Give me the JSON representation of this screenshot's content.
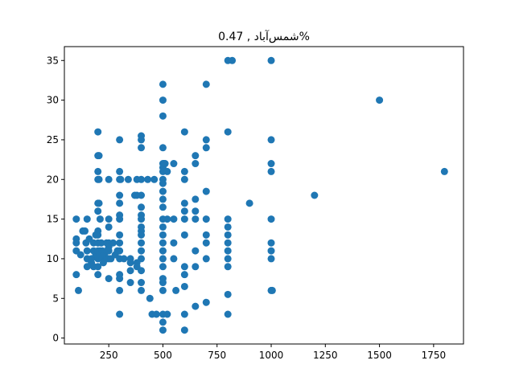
{
  "chart_data": {
    "type": "scatter",
    "title": "شمس‌آباد , 0.47%",
    "xlabel": "",
    "ylabel": "",
    "xlim": [
      45,
      1888
    ],
    "ylim": [
      -0.75,
      36.75
    ],
    "xticks": [
      250,
      500,
      750,
      1000,
      1250,
      1500,
      1750
    ],
    "yticks": [
      0,
      5,
      10,
      15,
      20,
      25,
      30,
      35
    ],
    "grid": false,
    "legend": "none",
    "marker_color": "#1f77b4",
    "points": [
      [
        100,
        15
      ],
      [
        100,
        12.5
      ],
      [
        100,
        12
      ],
      [
        100,
        11
      ],
      [
        100,
        8
      ],
      [
        110,
        6
      ],
      [
        120,
        10.5
      ],
      [
        130,
        13.5
      ],
      [
        140,
        13.5
      ],
      [
        145,
        12
      ],
      [
        150,
        15
      ],
      [
        150,
        11
      ],
      [
        150,
        10
      ],
      [
        150,
        9
      ],
      [
        160,
        12.5
      ],
      [
        170,
        10
      ],
      [
        170,
        9.5
      ],
      [
        180,
        12
      ],
      [
        180,
        11
      ],
      [
        180,
        9
      ],
      [
        190,
        13
      ],
      [
        190,
        10.5
      ],
      [
        200,
        26
      ],
      [
        200,
        23
      ],
      [
        200,
        21
      ],
      [
        200,
        20
      ],
      [
        200,
        17
      ],
      [
        200,
        16
      ],
      [
        200,
        13.5
      ],
      [
        200,
        13
      ],
      [
        200,
        12
      ],
      [
        200,
        11
      ],
      [
        200,
        10
      ],
      [
        200,
        9
      ],
      [
        200,
        8
      ],
      [
        205,
        23
      ],
      [
        205,
        20
      ],
      [
        205,
        17
      ],
      [
        210,
        15
      ],
      [
        210,
        11
      ],
      [
        210,
        10.5
      ],
      [
        215,
        12
      ],
      [
        220,
        11
      ],
      [
        220,
        10
      ],
      [
        225,
        9.5
      ],
      [
        230,
        10.5
      ],
      [
        240,
        12
      ],
      [
        240,
        11
      ],
      [
        240,
        10
      ],
      [
        250,
        20
      ],
      [
        250,
        15
      ],
      [
        250,
        14
      ],
      [
        250,
        12
      ],
      [
        250,
        11.5
      ],
      [
        250,
        11
      ],
      [
        250,
        10
      ],
      [
        250,
        7.5
      ],
      [
        260,
        10
      ],
      [
        270,
        12
      ],
      [
        280,
        10.5
      ],
      [
        290,
        11
      ],
      [
        300,
        25
      ],
      [
        300,
        21
      ],
      [
        300,
        20
      ],
      [
        300,
        18
      ],
      [
        300,
        17
      ],
      [
        300,
        15.5
      ],
      [
        300,
        15
      ],
      [
        300,
        13
      ],
      [
        300,
        12
      ],
      [
        300,
        11
      ],
      [
        300,
        10
      ],
      [
        300,
        8
      ],
      [
        300,
        7.5
      ],
      [
        300,
        6
      ],
      [
        300,
        3
      ],
      [
        305,
        20
      ],
      [
        320,
        10
      ],
      [
        340,
        20
      ],
      [
        350,
        10
      ],
      [
        350,
        9.5
      ],
      [
        350,
        8.5
      ],
      [
        350,
        7
      ],
      [
        370,
        18
      ],
      [
        380,
        20
      ],
      [
        380,
        18
      ],
      [
        380,
        9.5
      ],
      [
        380,
        9
      ],
      [
        400,
        25.5
      ],
      [
        400,
        25
      ],
      [
        400,
        24
      ],
      [
        400,
        20
      ],
      [
        400,
        18
      ],
      [
        400,
        16.5
      ],
      [
        400,
        15.5
      ],
      [
        400,
        15
      ],
      [
        400,
        14
      ],
      [
        400,
        13.5
      ],
      [
        400,
        13
      ],
      [
        400,
        12
      ],
      [
        400,
        11
      ],
      [
        400,
        10
      ],
      [
        400,
        8.5
      ],
      [
        400,
        7
      ],
      [
        400,
        6
      ],
      [
        430,
        20
      ],
      [
        440,
        5
      ],
      [
        450,
        3
      ],
      [
        460,
        20
      ],
      [
        470,
        3
      ],
      [
        500,
        32
      ],
      [
        500,
        30
      ],
      [
        500,
        28
      ],
      [
        500,
        24
      ],
      [
        500,
        22
      ],
      [
        500,
        21.5
      ],
      [
        500,
        21
      ],
      [
        500,
        20
      ],
      [
        500,
        19.5
      ],
      [
        500,
        18.5
      ],
      [
        500,
        17.5
      ],
      [
        500,
        16.5
      ],
      [
        500,
        15
      ],
      [
        500,
        14
      ],
      [
        500,
        13
      ],
      [
        500,
        12
      ],
      [
        500,
        11
      ],
      [
        500,
        10
      ],
      [
        500,
        9
      ],
      [
        500,
        7.5
      ],
      [
        500,
        7
      ],
      [
        500,
        6
      ],
      [
        500,
        3
      ],
      [
        500,
        2
      ],
      [
        500,
        1
      ],
      [
        505,
        22
      ],
      [
        510,
        22
      ],
      [
        520,
        21
      ],
      [
        520,
        15
      ],
      [
        520,
        3
      ],
      [
        550,
        22
      ],
      [
        550,
        15
      ],
      [
        550,
        12
      ],
      [
        550,
        10
      ],
      [
        560,
        6
      ],
      [
        600,
        26
      ],
      [
        600,
        21
      ],
      [
        600,
        20
      ],
      [
        600,
        17
      ],
      [
        600,
        16
      ],
      [
        600,
        15
      ],
      [
        600,
        13
      ],
      [
        600,
        9
      ],
      [
        600,
        8
      ],
      [
        600,
        6.5
      ],
      [
        600,
        3
      ],
      [
        600,
        1
      ],
      [
        650,
        23
      ],
      [
        650,
        22
      ],
      [
        650,
        17.5
      ],
      [
        650,
        16
      ],
      [
        650,
        15
      ],
      [
        650,
        11
      ],
      [
        650,
        9
      ],
      [
        650,
        4
      ],
      [
        700,
        32
      ],
      [
        700,
        25
      ],
      [
        700,
        24
      ],
      [
        700,
        18.5
      ],
      [
        700,
        15
      ],
      [
        700,
        13
      ],
      [
        700,
        12
      ],
      [
        700,
        10
      ],
      [
        700,
        4.5
      ],
      [
        800,
        35
      ],
      [
        800,
        26
      ],
      [
        800,
        15
      ],
      [
        800,
        14
      ],
      [
        800,
        13
      ],
      [
        800,
        12
      ],
      [
        800,
        11
      ],
      [
        800,
        10
      ],
      [
        800,
        9
      ],
      [
        800,
        5.5
      ],
      [
        800,
        3
      ],
      [
        820,
        35
      ],
      [
        900,
        17
      ],
      [
        1000,
        35
      ],
      [
        1000,
        25
      ],
      [
        1000,
        22
      ],
      [
        1000,
        21
      ],
      [
        1000,
        15
      ],
      [
        1000,
        12
      ],
      [
        1000,
        11
      ],
      [
        1000,
        10
      ],
      [
        1000,
        6
      ],
      [
        1005,
        6
      ],
      [
        1200,
        18
      ],
      [
        1500,
        30
      ],
      [
        1800,
        21
      ]
    ]
  }
}
